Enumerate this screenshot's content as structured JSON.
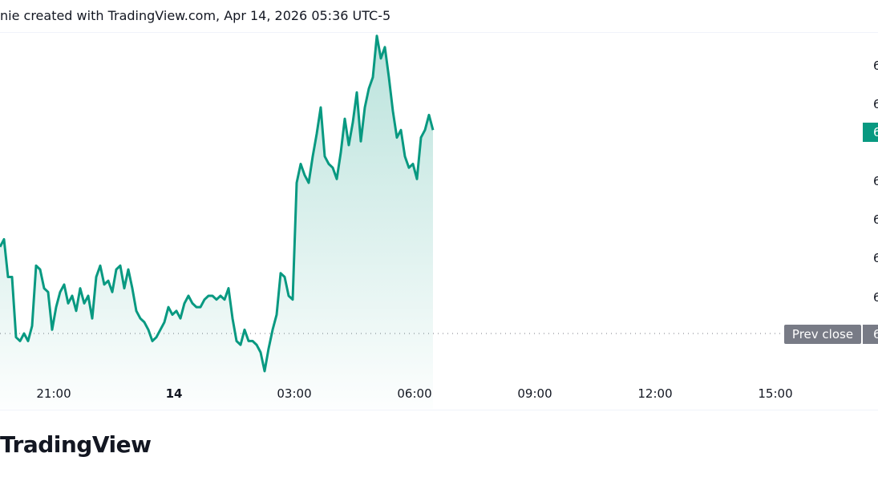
{
  "header": {
    "text": "nie created with TradingView.com, Apr 14, 2026 05:36 UTC-5"
  },
  "logo": {
    "text": "TradingView"
  },
  "colors": {
    "line": "#089981",
    "prev_close": "#787b86",
    "last_price_tag": "#089981"
  },
  "chart_data": {
    "type": "area",
    "title": "",
    "x_start": "19:40",
    "interval_minutes": 6,
    "value_unit": "percent of visible price range (price axis labels clipped)",
    "values": [
      43,
      45,
      35,
      35,
      19,
      18,
      20,
      18,
      22,
      38,
      37,
      32,
      31,
      21,
      27,
      31,
      33,
      28,
      30,
      26,
      32,
      28,
      30,
      24,
      35,
      38,
      33,
      34,
      31,
      37,
      38,
      32,
      37,
      32,
      26,
      24,
      23,
      21,
      18,
      19,
      21,
      23,
      27,
      25,
      26,
      24,
      28,
      30,
      28,
      27,
      27,
      29,
      30,
      30,
      29,
      30,
      29,
      32,
      24,
      18,
      17,
      21,
      18,
      18,
      17,
      15,
      10,
      16,
      21,
      25,
      36,
      35,
      30,
      29,
      60,
      65,
      62,
      60,
      67,
      73,
      80,
      67,
      65,
      64,
      61,
      68,
      77,
      70,
      76,
      84,
      71,
      80,
      85,
      88,
      99,
      93,
      96,
      88,
      79,
      72,
      74,
      67,
      64,
      65,
      61,
      72,
      74,
      78,
      74
    ],
    "prev_close_level": 20,
    "x_ticks": [
      {
        "label": "21:00",
        "bold": false
      },
      {
        "label": "14",
        "bold": true
      },
      {
        "label": "03:00",
        "bold": false
      },
      {
        "label": "06:00",
        "bold": false
      },
      {
        "label": "09:00",
        "bold": false
      },
      {
        "label": "12:00",
        "bold": false
      },
      {
        "label": "15:00",
        "bold": false
      }
    ],
    "y_ticks": [
      "6",
      "6",
      "6",
      "6",
      "6",
      "6",
      "6"
    ],
    "last_price_label": "6",
    "prev_close_label": "Prev close",
    "prev_close_value": "6",
    "grid": false
  }
}
